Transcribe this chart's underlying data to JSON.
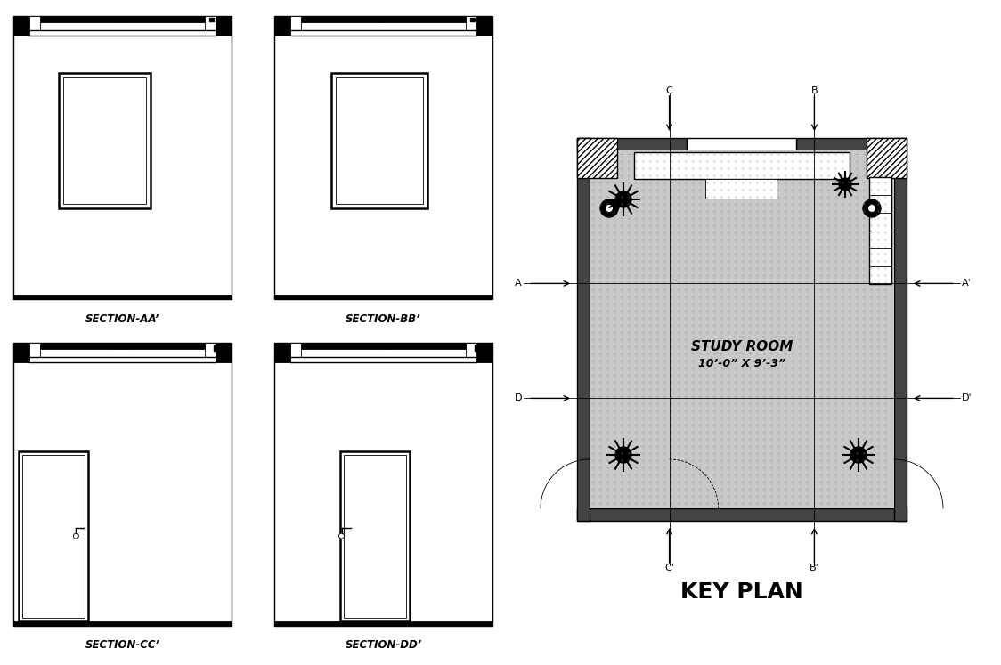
{
  "bg_color": "#ffffff",
  "line_color": "#000000",
  "title_key_plan": "KEY PLAN",
  "title_study_room": "STUDY ROOM",
  "title_dimensions": "10’-0” X 9’-3”",
  "sections": [
    "SECTION-AA’",
    "SECTION-BB’",
    "SECTION-CC’",
    "SECTION-DD’"
  ],
  "fig_w": 1124,
  "fig_h": 747
}
